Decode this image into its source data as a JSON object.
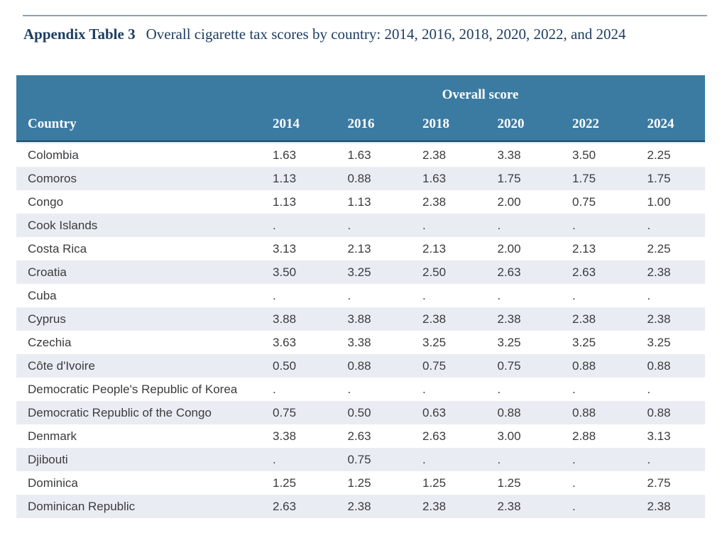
{
  "title": {
    "label": "Appendix Table 3",
    "text": "Overall cigarette tax scores by country: 2014, 2016, 2018, 2020, 2022, and 2024"
  },
  "table": {
    "spanner": "Overall score",
    "country_header": "Country",
    "year_headers": [
      "2014",
      "2016",
      "2018",
      "2020",
      "2022",
      "2024"
    ],
    "rows": [
      {
        "country": "Colombia",
        "values": [
          "1.63",
          "1.63",
          "2.38",
          "3.38",
          "3.50",
          "2.25"
        ]
      },
      {
        "country": "Comoros",
        "values": [
          "1.13",
          "0.88",
          "1.63",
          "1.75",
          "1.75",
          "1.75"
        ]
      },
      {
        "country": "Congo",
        "values": [
          "1.13",
          "1.13",
          "2.38",
          "2.00",
          "0.75",
          "1.00"
        ]
      },
      {
        "country": "Cook Islands",
        "values": [
          ".",
          ".",
          ".",
          ".",
          ".",
          "."
        ]
      },
      {
        "country": "Costa Rica",
        "values": [
          "3.13",
          "2.13",
          "2.13",
          "2.00",
          "2.13",
          "2.25"
        ]
      },
      {
        "country": "Croatia",
        "values": [
          "3.50",
          "3.25",
          "2.50",
          "2.63",
          "2.63",
          "2.38"
        ]
      },
      {
        "country": "Cuba",
        "values": [
          ".",
          ".",
          ".",
          ".",
          ".",
          "."
        ]
      },
      {
        "country": "Cyprus",
        "values": [
          "3.88",
          "3.88",
          "2.38",
          "2.38",
          "2.38",
          "2.38"
        ]
      },
      {
        "country": "Czechia",
        "values": [
          "3.63",
          "3.38",
          "3.25",
          "3.25",
          "3.25",
          "3.25"
        ]
      },
      {
        "country": "Côte d'Ivoire",
        "values": [
          "0.50",
          "0.88",
          "0.75",
          "0.75",
          "0.88",
          "0.88"
        ]
      },
      {
        "country": "Democratic People's Republic of Korea",
        "values": [
          ".",
          ".",
          ".",
          ".",
          ".",
          "."
        ]
      },
      {
        "country": "Democratic Republic of the Congo",
        "values": [
          "0.75",
          "0.50",
          "0.63",
          "0.88",
          "0.88",
          "0.88"
        ]
      },
      {
        "country": "Denmark",
        "values": [
          "3.38",
          "2.63",
          "2.63",
          "3.00",
          "2.88",
          "3.13"
        ]
      },
      {
        "country": "Djibouti",
        "values": [
          ".",
          "0.75",
          ".",
          ".",
          ".",
          "."
        ]
      },
      {
        "country": "Dominica",
        "values": [
          "1.25",
          "1.25",
          "1.25",
          "1.25",
          ".",
          "2.75"
        ]
      },
      {
        "country": "Dominican Republic",
        "values": [
          "2.63",
          "2.38",
          "2.38",
          "2.38",
          ".",
          "2.38"
        ]
      }
    ]
  },
  "colors": {
    "header_background": "#3b7ba2",
    "header_text": "#ffffff",
    "row_stripe": "#e9edf3",
    "body_text": "#3a3b3d",
    "title_text": "#1d3e63",
    "header_bottom_border": "#1c4763",
    "top_rule": "#90a0ab"
  }
}
